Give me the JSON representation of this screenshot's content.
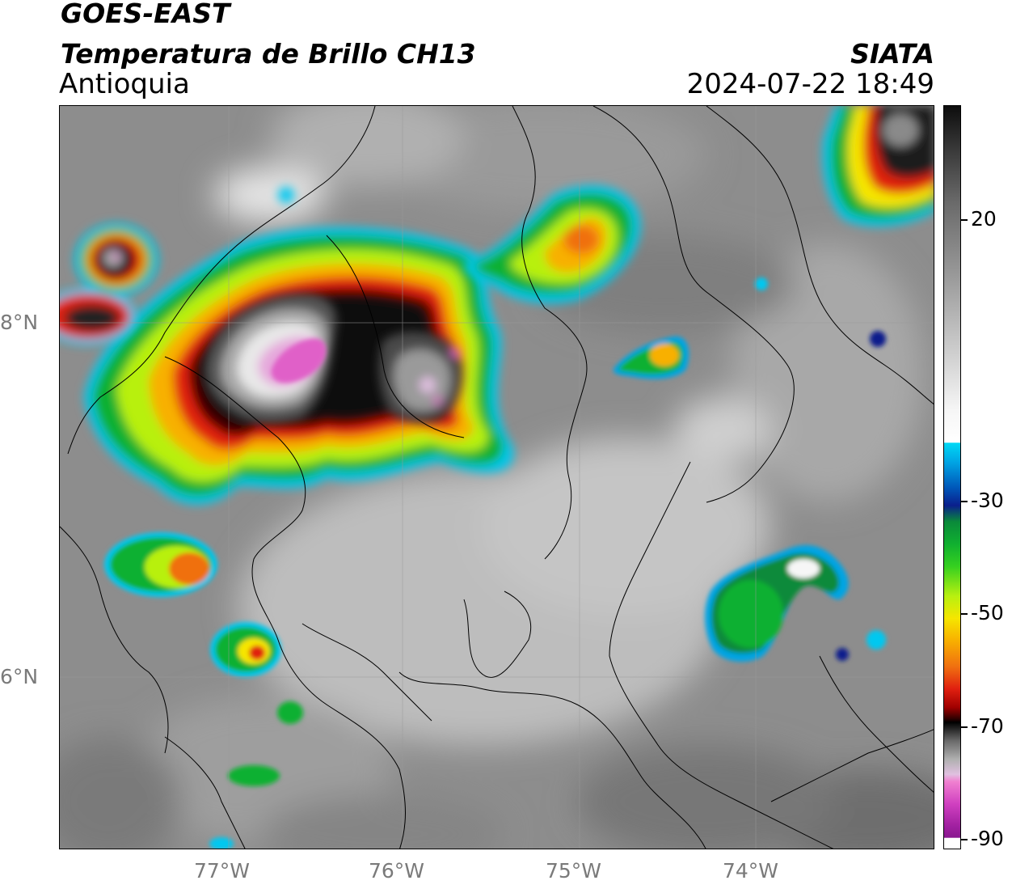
{
  "header": {
    "satellite": "GOES-EAST",
    "product": "Temperatura de Brillo CH13",
    "region": "Antioquia",
    "agency": "SIATA",
    "timestamp": "2024-07-22 18:49"
  },
  "axes": {
    "lon_labels": [
      "77°W",
      "76°W",
      "75°W",
      "74°W"
    ],
    "lat_labels": [
      "8°N",
      "6°N"
    ]
  },
  "colorbar": {
    "ticks": [
      "20",
      "-30",
      "-50",
      "-70",
      "-90"
    ],
    "colors": {
      "warm_gray": "#9a9a9a",
      "cyan": "#00d8f5",
      "blue": "#0a1f8c",
      "green": "#10b030",
      "yellow": "#f6e600",
      "orange": "#f07010",
      "red": "#e02010",
      "black": "#000000",
      "magenta": "#f080d0",
      "purple": "#8a1890"
    }
  }
}
